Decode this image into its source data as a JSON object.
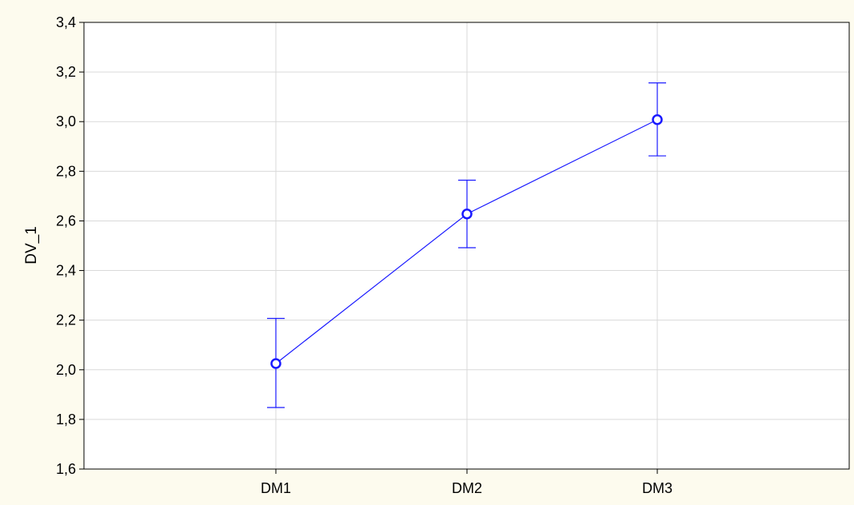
{
  "chart_data": {
    "type": "line",
    "title": "",
    "xlabel": "",
    "ylabel": "DV_1",
    "categories": [
      "DM1",
      "DM2",
      "DM3"
    ],
    "series": [
      {
        "values": [
          2.025,
          2.628,
          3.008
        ],
        "error_upper": [
          2.207,
          2.764,
          3.156
        ],
        "error_lower": [
          1.848,
          2.492,
          2.862
        ]
      }
    ],
    "ylim": [
      1.6,
      3.4
    ],
    "yticks": [
      "1,6",
      "1,8",
      "2,0",
      "2,2",
      "2,4",
      "2,6",
      "2,8",
      "3,0",
      "3,2",
      "3,4"
    ],
    "grid": true,
    "legend": "none",
    "colors": {
      "series": "#1a1aff",
      "grid": "#d9d9d9",
      "axis": "#000000",
      "plot_background": "#ffffff",
      "page_background": "#fdfbee"
    }
  }
}
